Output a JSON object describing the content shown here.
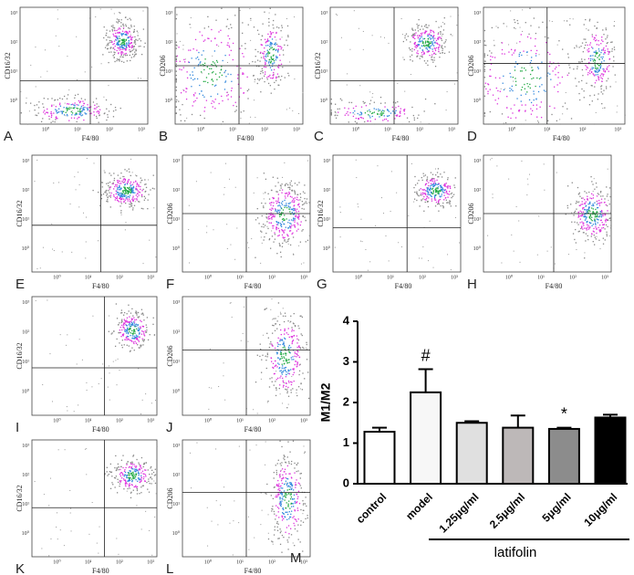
{
  "figure": {
    "flow_ticks": [
      "10⁰",
      "10¹",
      "10²",
      "10³"
    ],
    "panels": [
      {
        "label": "A",
        "x_label": "F4/80",
        "y_label": "CD16/32"
      },
      {
        "label": "B",
        "x_label": "F4/80",
        "y_label": "CD206"
      },
      {
        "label": "C",
        "x_label": "F4/80",
        "y_label": "CD16/32"
      },
      {
        "label": "D",
        "x_label": "F4/80",
        "y_label": "CD206"
      },
      {
        "label": "E",
        "x_label": "F4/80",
        "y_label": "CD16/32"
      },
      {
        "label": "F",
        "x_label": "F4/80",
        "y_label": "CD206"
      },
      {
        "label": "G",
        "x_label": "F4/80",
        "y_label": "CD16/32"
      },
      {
        "label": "H",
        "x_label": "F4/80",
        "y_label": "CD206"
      },
      {
        "label": "I",
        "x_label": "F4/80",
        "y_label": "CD16/32"
      },
      {
        "label": "J",
        "x_label": "F4/80",
        "y_label": "CD206"
      },
      {
        "label": "K",
        "x_label": "F4/80",
        "y_label": "CD16/32"
      },
      {
        "label": "L",
        "x_label": "F4/80",
        "y_label": "CD206"
      }
    ]
  },
  "chart_data": {
    "type": "bar",
    "panel_label": "M",
    "y_label": "M1/M2",
    "categories": [
      "control",
      "model",
      "1.25μg/ml",
      "2.5μg/ml",
      "5μg/ml",
      "10μg/ml"
    ],
    "values": [
      1.28,
      2.25,
      1.5,
      1.38,
      1.35,
      1.63
    ],
    "errors": [
      0.1,
      0.57,
      0.04,
      0.3,
      0.03,
      0.07
    ],
    "colors": [
      "#ffffff",
      "#f7f7f7",
      "#e0e0e0",
      "#bdb8b8",
      "#8c8c8c",
      "#000000"
    ],
    "annotations": [
      {
        "category": 1,
        "text": "#"
      },
      {
        "category": 4,
        "text": "*"
      }
    ],
    "group_label": "latifolin",
    "ylim": [
      0,
      4
    ],
    "yticks": [
      0,
      1,
      2,
      3,
      4
    ]
  }
}
